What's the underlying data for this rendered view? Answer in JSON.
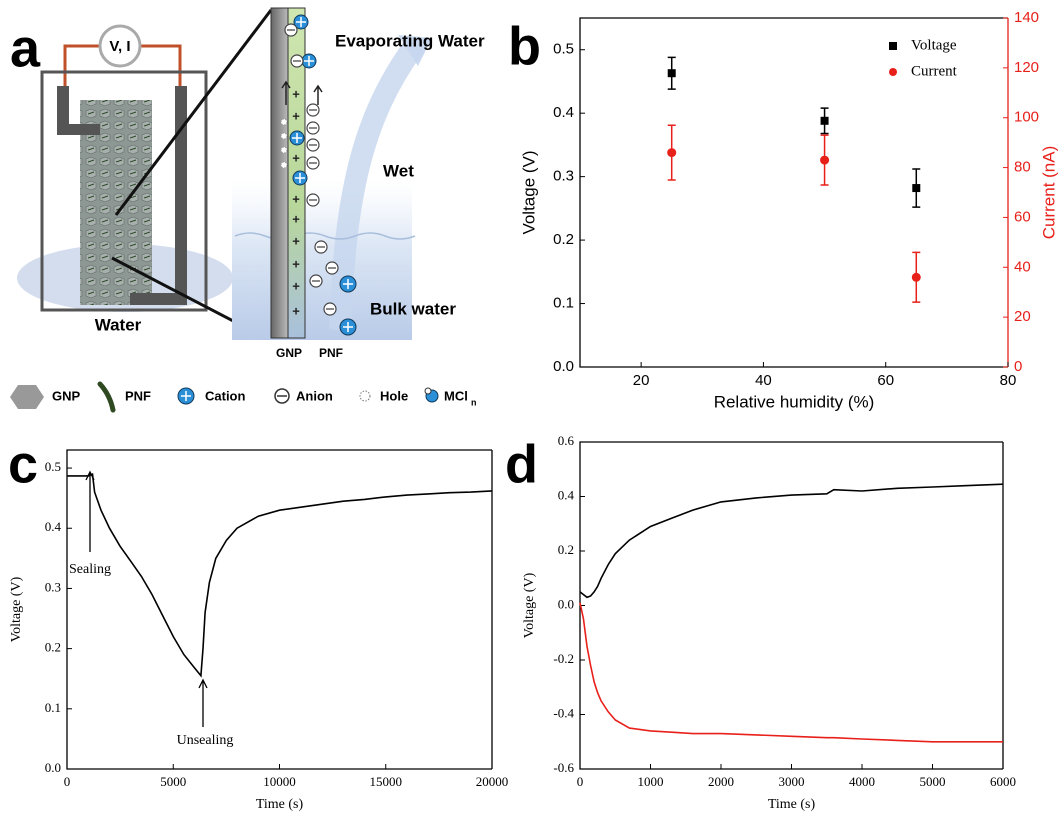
{
  "diagram": {
    "panel_label": "a",
    "meter": "V, I",
    "evaporating": "Evaporating Water",
    "wet": "Wet",
    "bulk": "Bulk water",
    "water": "Water",
    "strip_labels": [
      "GNP",
      "PNF"
    ],
    "legend": [
      "GNP",
      "PNF",
      "Cation",
      "Anion",
      "Hole"
    ],
    "legend_mcl": {
      "label": "MCl",
      "subscript": "n"
    }
  },
  "chart_data": [
    {
      "type": "scatter",
      "panel_label": "b",
      "xlabel": "Relative humidity (%)",
      "ylabel": "Voltage (V)",
      "y2label": "Current (nA)",
      "xlim": [
        10,
        80
      ],
      "xticks": [
        20,
        40,
        60,
        80
      ],
      "ylim": [
        0,
        0.55
      ],
      "yticks": [
        {
          "value": 0,
          "label": "0.0"
        },
        0.1,
        0.2,
        0.3,
        0.4,
        0.5
      ],
      "y2lim": [
        0,
        140
      ],
      "y2ticks": [
        0,
        20,
        40,
        60,
        80,
        100,
        120,
        140
      ],
      "legend": "upper right",
      "x": [
        25,
        50,
        65
      ],
      "series": [
        {
          "name": "Voltage",
          "color": "#000000",
          "marker": "square",
          "values": [
            0.463,
            0.388,
            0.282
          ],
          "errors": [
            0.025,
            0.02,
            0.03
          ]
        },
        {
          "name": "Current",
          "color": "#e8201a",
          "marker": "circle",
          "axis": "y2",
          "values": [
            86,
            83,
            36
          ],
          "errors": [
            11,
            10,
            10
          ]
        }
      ]
    },
    {
      "type": "line",
      "panel_label": "c",
      "xlabel": "Time (s)",
      "ylabel": "Voltage (V)",
      "xlim": [
        0,
        20000
      ],
      "xticks": [
        0,
        5000,
        10000,
        15000,
        20000
      ],
      "ylim": [
        0,
        0.53
      ],
      "yticks": [
        {
          "value": 0,
          "label": "0.0"
        },
        0.1,
        0.2,
        0.3,
        0.4,
        0.5
      ],
      "annotations": [
        "Sealing",
        "Unsealing"
      ],
      "x": [
        0,
        1000,
        1200,
        1300,
        1600,
        2000,
        2500,
        3000,
        3500,
        4000,
        4500,
        5000,
        5500,
        6000,
        6300,
        6400,
        6500,
        6700,
        7000,
        7500,
        8000,
        9000,
        10000,
        11000,
        12000,
        13000,
        14000,
        15000,
        16000,
        17000,
        18000,
        19000,
        20000
      ],
      "series": [
        {
          "color": "#000000",
          "values": [
            0.487,
            0.487,
            0.49,
            0.46,
            0.43,
            0.4,
            0.37,
            0.345,
            0.32,
            0.29,
            0.255,
            0.22,
            0.19,
            0.168,
            0.155,
            0.2,
            0.26,
            0.31,
            0.35,
            0.38,
            0.4,
            0.42,
            0.43,
            0.435,
            0.44,
            0.445,
            0.448,
            0.452,
            0.455,
            0.457,
            0.459,
            0.46,
            0.462
          ]
        }
      ]
    },
    {
      "type": "line",
      "panel_label": "d",
      "xlabel": "Time (s)",
      "ylabel": "Voltage (V)",
      "xlim": [
        0,
        6000
      ],
      "xticks": [
        0,
        1000,
        2000,
        3000,
        4000,
        5000,
        6000
      ],
      "ylim": [
        -0.6,
        0.6
      ],
      "yticks": [
        -0.6,
        -0.4,
        -0.2,
        {
          "value": 0,
          "label": "0.0"
        },
        0.2,
        0.4,
        0.6
      ],
      "x": [
        0,
        50,
        100,
        150,
        200,
        250,
        300,
        400,
        500,
        700,
        1000,
        1300,
        1600,
        2000,
        2500,
        3000,
        3500,
        3600,
        4000,
        4500,
        5000,
        5500,
        6000
      ],
      "series": [
        {
          "color": "#000000",
          "values": [
            0.05,
            0.04,
            0.03,
            0.035,
            0.05,
            0.07,
            0.1,
            0.15,
            0.19,
            0.24,
            0.29,
            0.32,
            0.35,
            0.38,
            0.395,
            0.405,
            0.41,
            0.425,
            0.42,
            0.43,
            0.435,
            0.44,
            0.445
          ]
        },
        {
          "color": "#e8201a",
          "values": [
            0.01,
            -0.05,
            -0.15,
            -0.22,
            -0.28,
            -0.32,
            -0.35,
            -0.39,
            -0.42,
            -0.45,
            -0.46,
            -0.465,
            -0.47,
            -0.47,
            -0.475,
            -0.48,
            -0.485,
            -0.485,
            -0.49,
            -0.495,
            -0.5,
            -0.5,
            -0.5
          ]
        }
      ]
    }
  ]
}
